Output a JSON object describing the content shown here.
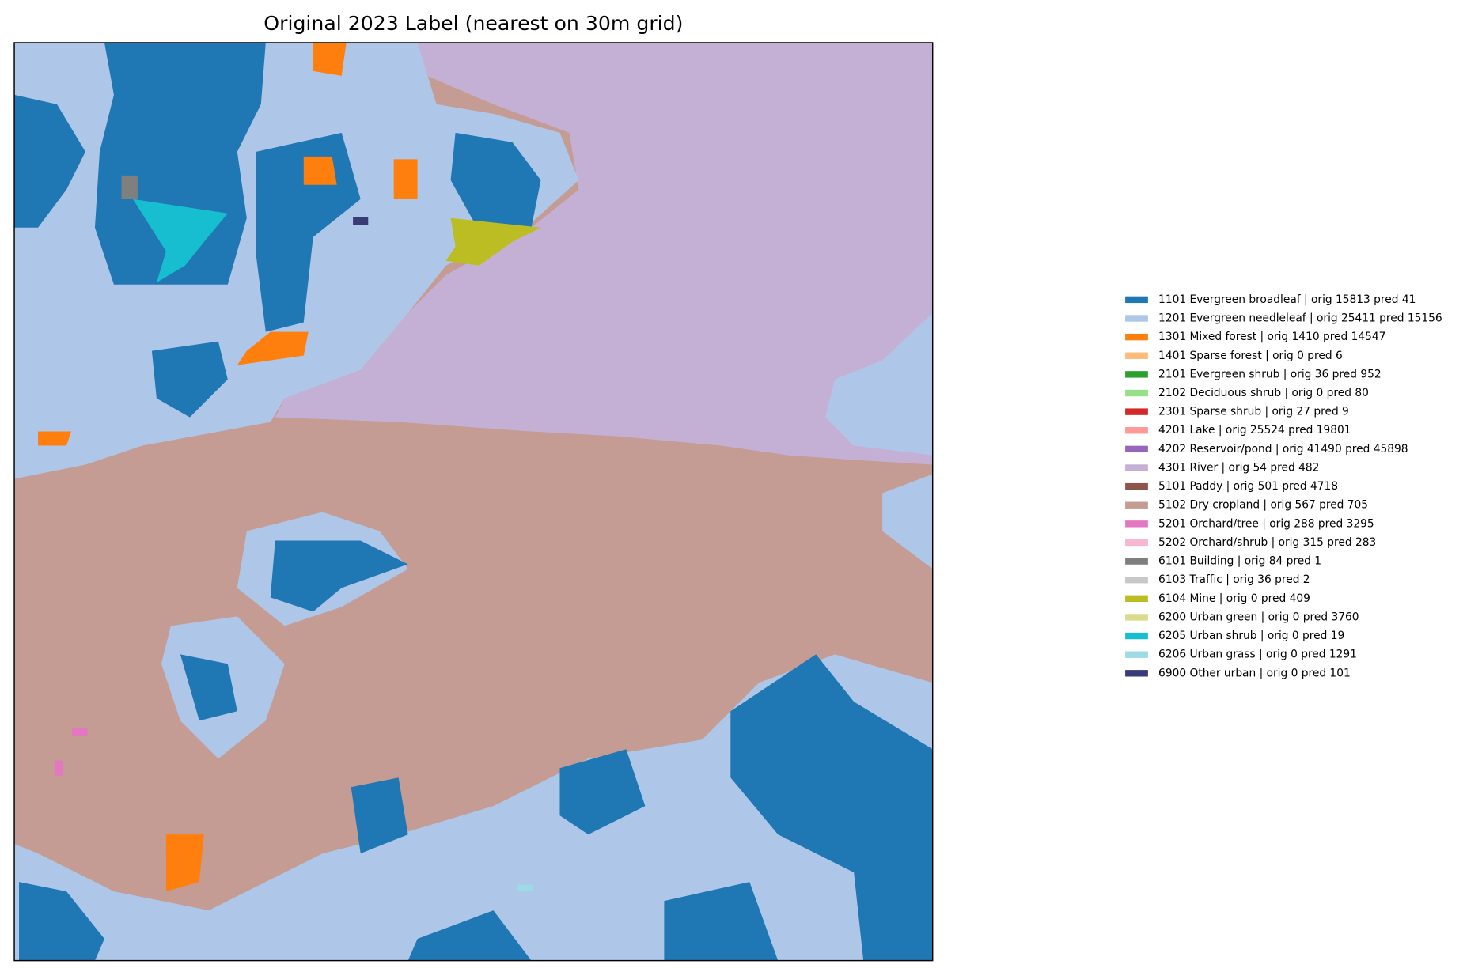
{
  "title": "Original 2023 Label (nearest on 30m grid)",
  "legend": [
    {
      "label": "1101 Evergreen broadleaf | orig 15813 pred 41",
      "color": "#1f77b4"
    },
    {
      "label": "1201 Evergreen needleleaf | orig 25411 pred 15156",
      "color": "#aec7e8"
    },
    {
      "label": "1301 Mixed forest | orig 1410 pred 14547",
      "color": "#ff7f0e"
    },
    {
      "label": "1401 Sparse forest | orig 0 pred 6",
      "color": "#ffbb78"
    },
    {
      "label": "2101 Evergreen shrub | orig 36 pred 952",
      "color": "#2ca02c"
    },
    {
      "label": "2102 Deciduous shrub | orig 0 pred 80",
      "color": "#98df8a"
    },
    {
      "label": "2301 Sparse shrub | orig 27 pred 9",
      "color": "#d62728"
    },
    {
      "label": "4201 Lake | orig 25524 pred 19801",
      "color": "#ff9896"
    },
    {
      "label": "4202 Reservoir/pond | orig 41490 pred 45898",
      "color": "#9467bd"
    },
    {
      "label": "4301 River | orig 54 pred 482",
      "color": "#c5b0d5"
    },
    {
      "label": "5101 Paddy | orig 501 pred 4718",
      "color": "#8c564b"
    },
    {
      "label": "5102 Dry cropland | orig 567 pred 705",
      "color": "#c49c94"
    },
    {
      "label": "5201 Orchard/tree | orig 288 pred 3295",
      "color": "#e377c2"
    },
    {
      "label": "5202 Orchard/shrub | orig 315 pred 283",
      "color": "#f7b6d2"
    },
    {
      "label": "6101 Building | orig 84 pred 1",
      "color": "#7f7f7f"
    },
    {
      "label": "6103 Traffic | orig 36 pred 2",
      "color": "#c7c7c7"
    },
    {
      "label": "6104 Mine | orig 0 pred 409",
      "color": "#bcbd22"
    },
    {
      "label": "6200 Urban green | orig 0 pred 3760",
      "color": "#dbdb8d"
    },
    {
      "label": "6205 Urban shrub | orig 0 pred 19",
      "color": "#17becf"
    },
    {
      "label": "6206 Urban grass | orig 0 pred 1291",
      "color": "#9edae5"
    },
    {
      "label": "6900 Other urban | orig 0 pred 101",
      "color": "#393b79"
    }
  ]
}
